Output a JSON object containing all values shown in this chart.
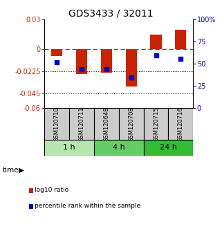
{
  "title": "GDS3433 / 32011",
  "samples": [
    "GSM120710",
    "GSM120711",
    "GSM120648",
    "GSM120708",
    "GSM120715",
    "GSM120716"
  ],
  "groups": [
    {
      "label": "1 h",
      "start": 0,
      "end": 1,
      "color": "#b8e6b0"
    },
    {
      "label": "4 h",
      "start": 2,
      "end": 3,
      "color": "#66cc66"
    },
    {
      "label": "24 h",
      "start": 4,
      "end": 5,
      "color": "#33bb33"
    }
  ],
  "log10_ratio": [
    -0.007,
    -0.025,
    -0.024,
    -0.038,
    0.015,
    0.02
  ],
  "percentile_rank": [
    0.52,
    0.44,
    0.44,
    0.35,
    0.6,
    0.56
  ],
  "left_yticks": [
    0.03,
    0.0,
    -0.0225,
    -0.045,
    -0.06
  ],
  "left_yticklabels": [
    "0.03",
    "0",
    "-0.0225",
    "-0.045",
    "-0.06"
  ],
  "right_yticks_pct": [
    100,
    75,
    50,
    25,
    0
  ],
  "right_yticklabels": [
    "100%",
    "75",
    "50",
    "25",
    "0"
  ],
  "dotted_lines": [
    -0.0225,
    -0.045
  ],
  "bar_color": "#cc2200",
  "dot_color": "#0000cc",
  "bar_width": 0.45,
  "dot_size": 22,
  "title_fontsize": 10,
  "tick_fontsize": 7,
  "legend_fontsize": 6.5,
  "group_label_fontsize": 8,
  "sample_label_fontsize": 6
}
